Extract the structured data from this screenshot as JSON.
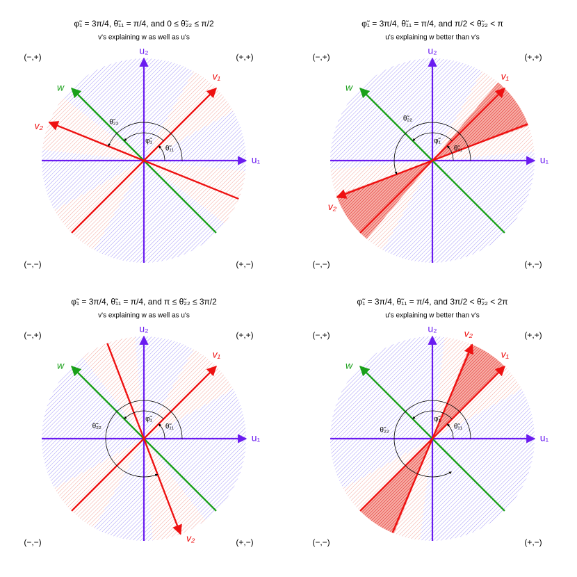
{
  "panels": [
    {
      "title": "φ̃₁ = 3π/4,   θ̃₁₁ = π/4,   and   0 ≤ θ̃₂₂ ≤ π/2",
      "subtitle": "v's explaining w as well as u's",
      "quadrants": [
        "(−,+)",
        "(+,+)",
        "(−,−)",
        "(+,−)"
      ],
      "axes": [
        "u₁",
        "u₂"
      ],
      "vectors": [
        "v₁",
        "v₂",
        "w"
      ],
      "angles": [
        "θ̃₂₂",
        "φ̃₁",
        "θ̃₁₁"
      ]
    },
    {
      "title": "φ̃₁ = 3π/4,   θ̃₁₁ = π/4,   and   π/2 < θ̃₂₂ < π",
      "subtitle": "u's explaining w better than v's",
      "quadrants": [
        "(−,+)",
        "(+,+)",
        "(−,−)",
        "(+,−)"
      ],
      "axes": [
        "u₁",
        "u₂"
      ],
      "vectors": [
        "v₁",
        "v₂",
        "w"
      ],
      "angles": [
        "θ̃₂₂",
        "φ̃₁",
        "θ̃₁₁"
      ]
    },
    {
      "title": "φ̃₁ = 3π/4,   θ̃₁₁ = π/4,   and   π ≤ θ̃₂₂ ≤ 3π/2",
      "subtitle": "v's explaining w as well as u's",
      "quadrants": [
        "(−,+)",
        "(+,+)",
        "(−,−)",
        "(+,−)"
      ],
      "axes": [
        "u₁",
        "u₂"
      ],
      "vectors": [
        "v₁",
        "v₂",
        "w"
      ],
      "angles": [
        "θ̃₂₂",
        "φ̃₁",
        "θ̃₁₁"
      ]
    },
    {
      "title": "φ̃₁ = 3π/4,   θ̃₁₁ = π/4,   and   3π/2 < θ̃₂₂ < 2π",
      "subtitle": "u's explaining w better than v's",
      "quadrants": [
        "(−,+)",
        "(+,+)",
        "(−,−)",
        "(+,−)"
      ],
      "axes": [
        "u₁",
        "u₂"
      ],
      "vectors": [
        "v₁",
        "v₂",
        "w"
      ],
      "angles": [
        "θ̃₂₂",
        "φ̃₁",
        "θ̃₁₁"
      ]
    }
  ]
}
